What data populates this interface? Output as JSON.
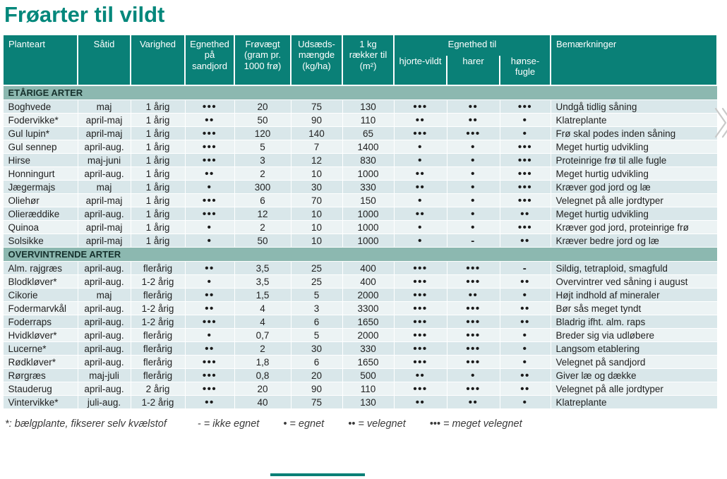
{
  "page": {
    "title": "Frøarter til vildt"
  },
  "colors": {
    "title": "#00877b",
    "header_bg": "#0a8077",
    "section_bg": "#8cb8b0",
    "row_odd": "#d9e7ea",
    "row_even": "#ecf3f4",
    "accent": "#0a8077",
    "chevron": "#c9c9c9"
  },
  "table": {
    "headers": {
      "planteart": "Planteart",
      "saatid": "Såtid",
      "varighed": "Varighed",
      "egnethed_sandjord": "Egnethed på sandjord",
      "frovaegt": "Frøvægt (gram pr. 1000 frø)",
      "udsaedsmaengde": "Udsæds-mængde (kg/ha)",
      "raekker": "1 kg rækker til (m²)",
      "egnethed_til": "Egnethed til",
      "hjortevildt": "hjorte-vildt",
      "harer": "harer",
      "honsefugle": "hønse-fugle",
      "bemaerkninger": "Bemærkninger"
    },
    "sections": [
      {
        "label": "ETÅRIGE ARTER",
        "rows": [
          [
            "Boghvede",
            "maj",
            "1 årig",
            "•••",
            "20",
            "75",
            "130",
            "•••",
            "••",
            "•••",
            "Undgå tidlig såning"
          ],
          [
            "Fodervikke*",
            "april-maj",
            "1 årig",
            "••",
            "50",
            "90",
            "110",
            "••",
            "••",
            "•",
            "Klatreplante"
          ],
          [
            "Gul lupin*",
            "april-maj",
            "1 årig",
            "•••",
            "120",
            "140",
            "65",
            "•••",
            "•••",
            "•",
            "Frø skal podes inden såning"
          ],
          [
            "Gul sennep",
            "april-aug.",
            "1 årig",
            "•••",
            "5",
            "7",
            "1400",
            "•",
            "•",
            "•••",
            "Meget hurtig udvikling"
          ],
          [
            "Hirse",
            "maj-juni",
            "1 årig",
            "•••",
            "3",
            "12",
            "830",
            "•",
            "•",
            "•••",
            "Proteinrige frø til alle fugle"
          ],
          [
            "Honningurt",
            "april-aug.",
            "1 årig",
            "••",
            "2",
            "10",
            "1000",
            "••",
            "•",
            "•••",
            "Meget hurtig udvikling"
          ],
          [
            "Jægermajs",
            "maj",
            "1 årig",
            "•",
            "300",
            "30",
            "330",
            "••",
            "•",
            "•••",
            "Kræver god jord og læ"
          ],
          [
            "Oliehør",
            "april-maj",
            "1 årig",
            "•••",
            "6",
            "70",
            "150",
            "•",
            "•",
            "•••",
            "Velegnet på alle jordtyper"
          ],
          [
            "Olieræddike",
            "april-aug.",
            "1 årig",
            "•••",
            "12",
            "10",
            "1000",
            "••",
            "•",
            "••",
            "Meget hurtig udvikling"
          ],
          [
            "Quinoa",
            "april-maj",
            "1 årig",
            "•",
            "2",
            "10",
            "1000",
            "•",
            "•",
            "•••",
            "Kræver god jord, proteinrige frø"
          ],
          [
            "Solsikke",
            "april-maj",
            "1 årig",
            "•",
            "50",
            "10",
            "1000",
            "•",
            "-",
            "••",
            "Kræver bedre jord og læ"
          ]
        ]
      },
      {
        "label": "OVERVINTRENDE ARTER",
        "rows": [
          [
            "Alm. rajgræs",
            "april-aug.",
            "flerårig",
            "••",
            "3,5",
            "25",
            "400",
            "•••",
            "•••",
            "-",
            "Sildig, tetraploid, smagfuld"
          ],
          [
            "Blodkløver*",
            "april-aug.",
            "1-2 årig",
            "•",
            "3,5",
            "25",
            "400",
            "•••",
            "•••",
            "••",
            "Overvintrer ved såning i august"
          ],
          [
            "Cikorie",
            "maj",
            "flerårig",
            "••",
            "1,5",
            "5",
            "2000",
            "•••",
            "••",
            "•",
            "Højt indhold af mineraler"
          ],
          [
            "Fodermarvkål",
            "april-aug.",
            "1-2 årig",
            "••",
            "4",
            "3",
            "3300",
            "•••",
            "•••",
            "••",
            "Bør sås meget tyndt"
          ],
          [
            "Foderraps",
            "april-aug.",
            "1-2 årig",
            "•••",
            "4",
            "6",
            "1650",
            "•••",
            "•••",
            "••",
            "Bladrig ifht. alm. raps"
          ],
          [
            "Hvidkløver*",
            "april-aug.",
            "flerårig",
            "•",
            "0,7",
            "5",
            "2000",
            "•••",
            "•••",
            "•",
            "Breder sig via udløbere"
          ],
          [
            "Lucerne*",
            "april-aug.",
            "flerårig",
            "••",
            "2",
            "30",
            "330",
            "•••",
            "•••",
            "•",
            "Langsom etablering"
          ],
          [
            "Rødkløver*",
            "april-aug.",
            "flerårig",
            "•••",
            "1,8",
            "6",
            "1650",
            "•••",
            "•••",
            "•",
            "Velegnet på sandjord"
          ],
          [
            "Rørgræs",
            "maj-juli",
            "flerårig",
            "•••",
            "0,8",
            "20",
            "500",
            "••",
            "•",
            "••",
            "Giver læ og dække"
          ],
          [
            "Stauderug",
            "april-aug.",
            "2 årig",
            "•••",
            "20",
            "90",
            "110",
            "•••",
            "•••",
            "••",
            "Velegnet på alle jordtyper"
          ],
          [
            "Vintervikke*",
            "juli-aug.",
            "1-2 årig",
            "••",
            "40",
            "75",
            "130",
            "••",
            "••",
            "•",
            "Klatreplante"
          ]
        ]
      }
    ]
  },
  "legend": {
    "note": "*: bælgplante, fikserer selv kvælstof",
    "items": [
      "- = ikke egnet",
      "• = egnet",
      "•• = velegnet",
      "••• = meget velegnet"
    ]
  }
}
